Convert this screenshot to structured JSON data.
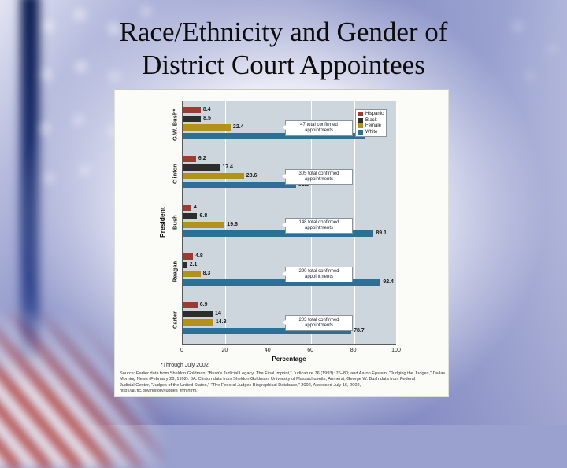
{
  "slide": {
    "title_lines": [
      "Race/Ethnicity and Gender of",
      "District Court Appointees"
    ]
  },
  "chart_data": {
    "type": "bar",
    "orientation": "horizontal",
    "title": "Race/Ethnicity and Gender of District Court Appointees",
    "xlabel": "Percentage",
    "ylabel": "President",
    "xlim": [
      0,
      100
    ],
    "xticks": [
      0,
      20,
      40,
      60,
      80,
      100
    ],
    "grid": true,
    "legend_position": "upper right",
    "series": [
      {
        "name": "Hispanic",
        "color": "#9d3b31"
      },
      {
        "name": "Black",
        "color": "#2d2d2d"
      },
      {
        "name": "Female",
        "color": "#b3921c"
      },
      {
        "name": "White",
        "color": "#2e6f96"
      }
    ],
    "groups": [
      {
        "president": "G.W. Bush*",
        "callout_lines": [
          "47 total confirmed",
          "appointments"
        ],
        "values": [
          8.4,
          8.5,
          22.4,
          85.1
        ]
      },
      {
        "president": "Clinton",
        "callout_lines": [
          "305 total confirmed",
          "appointments"
        ],
        "values": [
          6.2,
          17.4,
          28.6,
          52.9
        ]
      },
      {
        "president": "Bush",
        "callout_lines": [
          "148 total confirmed",
          "appointments"
        ],
        "values": [
          4,
          6.8,
          19.6,
          89.1
        ]
      },
      {
        "president": "Reagan",
        "callout_lines": [
          "290 total confirmed",
          "appointments"
        ],
        "values": [
          4.8,
          2.1,
          8.3,
          92.4
        ]
      },
      {
        "president": "Carter",
        "callout_lines": [
          "203 total confirmed",
          "appointments"
        ],
        "values": [
          6.9,
          14,
          14.3,
          78.7
        ]
      }
    ],
    "footnote": "*Through July 2002"
  },
  "source_lines": [
    "Source: Earlier data from Sheldon Goldman, \"Bush's Judicial Legacy: The Final Imprint,\" Judicature 76 (1993): 76–80; and Aaron Epstein, \"Judging the Judges,\" Dallas",
    "Morning News (February 26, 1992): 8A. Clinton data from Sheldon Goldman, University of Massachusetts, Amherst; George W. Bush data from Federal",
    "Judicial Center, \"Judges of the United States,\" \"The Federal Judges Biographical Database,\" 2002, Accessed July 16, 2002,",
    "http://air.fjc.gov/history/judges_frm.html."
  ]
}
